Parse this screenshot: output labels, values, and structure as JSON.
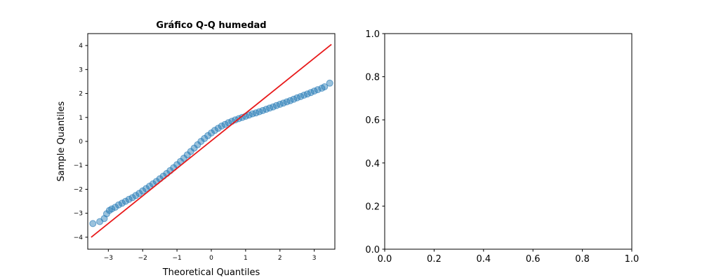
{
  "chart_data": [
    {
      "type": "scatter",
      "title": "Gráfico Q-Q humedad",
      "xlabel": "Theoretical Quantiles",
      "ylabel": "Sample Quantiles",
      "xlim": [
        -3.6,
        3.6
      ],
      "ylim": [
        -4.5,
        4.5
      ],
      "xticks": [
        -3,
        -2,
        -1,
        0,
        1,
        2,
        3
      ],
      "yticks": [
        -4,
        -3,
        -2,
        -1,
        0,
        1,
        2,
        3,
        4
      ],
      "grid": false,
      "series": [
        {
          "kind": "points",
          "color": "#1f77b4",
          "x": [
            -3.45,
            -3.25,
            -3.12,
            -3.05,
            -2.97,
            -2.9,
            -2.8,
            -2.7,
            -2.6,
            -2.5,
            -2.4,
            -2.3,
            -2.2,
            -2.1,
            -2.0,
            -1.9,
            -1.8,
            -1.7,
            -1.6,
            -1.5,
            -1.4,
            -1.3,
            -1.2,
            -1.1,
            -1.0,
            -0.9,
            -0.8,
            -0.7,
            -0.6,
            -0.5,
            -0.4,
            -0.3,
            -0.2,
            -0.1,
            0.0,
            0.1,
            0.2,
            0.3,
            0.4,
            0.5,
            0.6,
            0.7,
            0.8,
            0.9,
            1.0,
            1.1,
            1.2,
            1.3,
            1.4,
            1.5,
            1.6,
            1.7,
            1.8,
            1.9,
            2.0,
            2.1,
            2.2,
            2.3,
            2.4,
            2.5,
            2.6,
            2.7,
            2.8,
            2.9,
            3.0,
            3.1,
            3.22,
            3.3,
            3.45
          ],
          "y": [
            -3.43,
            -3.35,
            -3.22,
            -3.02,
            -2.88,
            -2.82,
            -2.75,
            -2.65,
            -2.58,
            -2.5,
            -2.42,
            -2.35,
            -2.26,
            -2.17,
            -2.07,
            -1.97,
            -1.87,
            -1.77,
            -1.67,
            -1.56,
            -1.45,
            -1.34,
            -1.22,
            -1.1,
            -0.97,
            -0.84,
            -0.7,
            -0.56,
            -0.42,
            -0.28,
            -0.14,
            0.0,
            0.12,
            0.24,
            0.35,
            0.46,
            0.55,
            0.64,
            0.71,
            0.78,
            0.84,
            0.9,
            0.95,
            1.0,
            1.05,
            1.1,
            1.15,
            1.19,
            1.24,
            1.29,
            1.34,
            1.39,
            1.44,
            1.5,
            1.55,
            1.6,
            1.65,
            1.7,
            1.76,
            1.82,
            1.87,
            1.93,
            1.98,
            2.04,
            2.1,
            2.16,
            2.22,
            2.28,
            2.43
          ]
        },
        {
          "kind": "reference-line",
          "color": "#e8191a",
          "x": [
            -3.5,
            3.5
          ],
          "y": [
            -4.0,
            4.05
          ]
        }
      ]
    },
    {
      "type": "scatter",
      "title": "",
      "xlabel": "",
      "ylabel": "",
      "xlim": [
        0.0,
        1.0
      ],
      "ylim": [
        0.0,
        1.0
      ],
      "xticks": [
        "0.0",
        "0.2",
        "0.4",
        "0.6",
        "0.8",
        "1.0"
      ],
      "yticks": [
        "0.0",
        "0.2",
        "0.4",
        "0.6",
        "0.8",
        "1.0"
      ],
      "grid": false,
      "series": []
    }
  ]
}
